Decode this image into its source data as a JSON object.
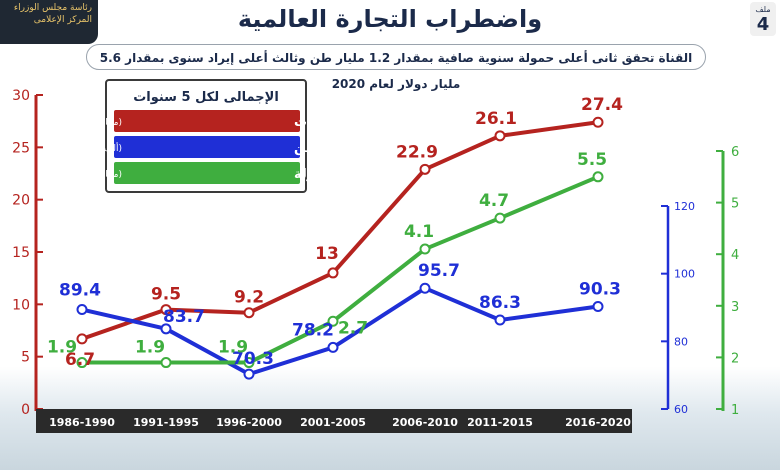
{
  "header": {
    "title": "واضطراب التجارة العالمية",
    "subtitle": "القناة تحقق ثانى أعلى حمولة سنوية صافية بمقدار 1.2 مليار طن وثالث أعلى إيراد سنوى بمقدار 5.6 مليار دولار لعام 2020",
    "logo_line1": "رئاسة مجلس الوزراء",
    "logo_line2": "المركز الإعلامى",
    "badge_word": "ملف",
    "badge_number": "4"
  },
  "colors": {
    "revenue": "#b5231f",
    "ships": "#1f2fd6",
    "tonnage": "#3fae3f",
    "axis_bar": "#2a2a2a"
  },
  "chart_data": {
    "type": "line",
    "categories": [
      "1986-1990",
      "1991-1995",
      "1996-2000",
      "2001-2005",
      "2006-2010",
      "2011-2015",
      "2016-2020"
    ],
    "legend": {
      "title": "الإجمالى لكل 5 سنوات",
      "placement": "top-left"
    },
    "axes": {
      "left": {
        "ticks": [
          0,
          5,
          10,
          15,
          20,
          25,
          30
        ],
        "ylim": [
          0,
          30
        ]
      },
      "blue": {
        "ticks": [
          60,
          80,
          100,
          120
        ],
        "ylim": [
          60,
          120
        ]
      },
      "right": {
        "ticks": [
          1,
          2,
          3,
          4,
          5,
          6
        ],
        "ylim": [
          1,
          6
        ]
      }
    },
    "series": [
      {
        "key": "revenue",
        "name": "الإيرادات",
        "unit": "(مليار دولار)",
        "axis": "left",
        "values": [
          6.7,
          9.5,
          9.2,
          13,
          22.9,
          26.1,
          27.4
        ],
        "labels": [
          "6.7",
          "9.5",
          "9.2",
          "13",
          "22.9",
          "26.1",
          "27.4"
        ]
      },
      {
        "key": "ships",
        "name": "أعداد السفن",
        "unit": "(ألف سفينة)",
        "axis": "blue",
        "values": [
          89.4,
          83.7,
          70.3,
          78.2,
          95.7,
          86.3,
          90.3
        ],
        "labels": [
          "89.4",
          "83.7",
          "70.3",
          "78.2",
          "95.7",
          "86.3",
          "90.3"
        ]
      },
      {
        "key": "tonnage",
        "name": "صافى الحمولة",
        "unit": "(مليار طن)",
        "axis": "right",
        "values": [
          1.9,
          1.9,
          1.9,
          2.7,
          4.1,
          4.7,
          5.5
        ],
        "labels": [
          "1.9",
          "1.9",
          "1.9",
          "2.7",
          "4.1",
          "4.7",
          "5.5"
        ]
      }
    ]
  }
}
